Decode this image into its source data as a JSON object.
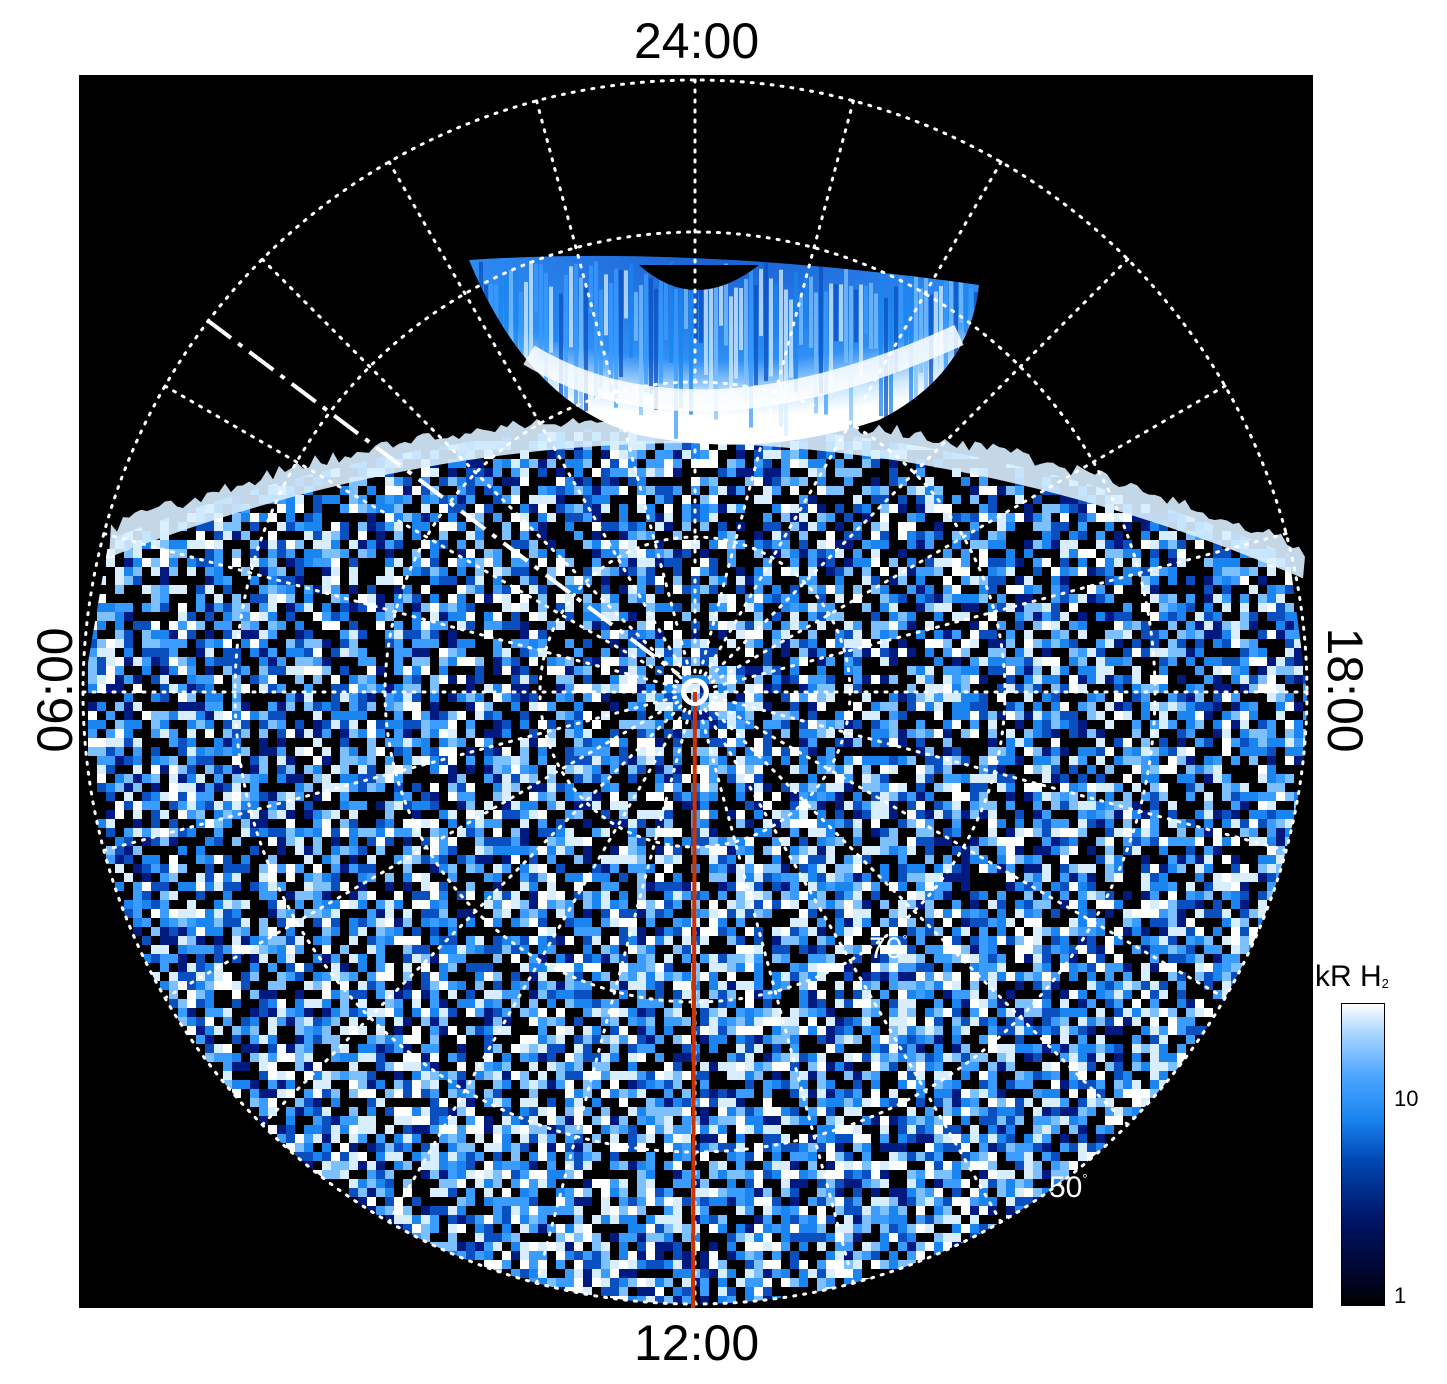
{
  "local_time_labels": {
    "top": "24:00",
    "bottom": "12:00",
    "left": "06:00",
    "right": "18:00"
  },
  "latitude_labels": [
    {
      "text": "70",
      "unit": "°"
    },
    {
      "text": "50",
      "unit": "°"
    }
  ],
  "colorbar": {
    "title_main": "kR H",
    "title_sub": "2",
    "ticks": [
      "10",
      "1"
    ],
    "colors": [
      "#000000",
      "#001466",
      "#0047b3",
      "#1a85f0",
      "#a6d5ff",
      "#ffffff"
    ]
  },
  "colors": {
    "background": "#000000",
    "grid": "#ffffff",
    "meridian_line": "#cc3300",
    "emission": "#1a85f0"
  }
}
